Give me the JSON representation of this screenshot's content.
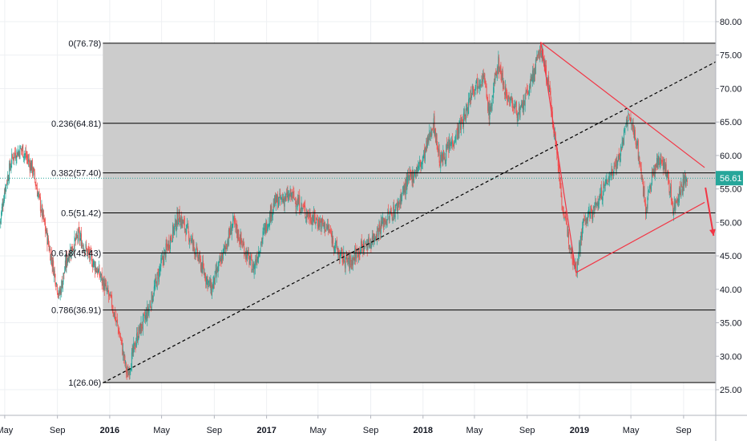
{
  "chart_data": {
    "type": "candlestick",
    "title": "",
    "xlabel": "",
    "ylabel": "",
    "ylim": [
      20.5,
      84.0
    ],
    "y_ticks": [
      25,
      30,
      35,
      40,
      45,
      50,
      55,
      60,
      65,
      70,
      75,
      80
    ],
    "y_tick_labels": [
      "25.00",
      "30.00",
      "35.00",
      "40.00",
      "45.00",
      "50.00",
      "55.00",
      "60.00",
      "65.00",
      "70.00",
      "75.00",
      "80.00"
    ],
    "x_range": [
      "2015-04-20",
      "2019-11-15"
    ],
    "x_ticks": [
      {
        "label": "May",
        "date": "2015-05-01"
      },
      {
        "label": "Sep",
        "date": "2015-09-01"
      },
      {
        "label": "2016",
        "date": "2016-01-01"
      },
      {
        "label": "May",
        "date": "2016-05-01"
      },
      {
        "label": "Sep",
        "date": "2016-09-01"
      },
      {
        "label": "2017",
        "date": "2017-01-01"
      },
      {
        "label": "May",
        "date": "2017-05-01"
      },
      {
        "label": "Sep",
        "date": "2017-09-01"
      },
      {
        "label": "2018",
        "date": "2018-01-01"
      },
      {
        "label": "May",
        "date": "2018-05-01"
      },
      {
        "label": "Sep",
        "date": "2018-09-01"
      },
      {
        "label": "2019",
        "date": "2019-01-01"
      },
      {
        "label": "May",
        "date": "2019-05-01"
      },
      {
        "label": "Sep",
        "date": "2019-09-01"
      }
    ],
    "price_path": [
      [
        "2015-04-20",
        50
      ],
      [
        "2015-05-01",
        55
      ],
      [
        "2015-05-20",
        60
      ],
      [
        "2015-06-10",
        61
      ],
      [
        "2015-07-05",
        58
      ],
      [
        "2015-07-25",
        52
      ],
      [
        "2015-08-20",
        44
      ],
      [
        "2015-09-05",
        39
      ],
      [
        "2015-09-25",
        45
      ],
      [
        "2015-10-20",
        48
      ],
      [
        "2015-11-15",
        45
      ],
      [
        "2015-12-10",
        42
      ],
      [
        "2016-01-05",
        38
      ],
      [
        "2016-01-25",
        33
      ],
      [
        "2016-02-11",
        27
      ],
      [
        "2016-03-05",
        33
      ],
      [
        "2016-04-01",
        37
      ],
      [
        "2016-05-01",
        44
      ],
      [
        "2016-06-10",
        51
      ],
      [
        "2016-07-05",
        48
      ],
      [
        "2016-08-05",
        43
      ],
      [
        "2016-08-25",
        40
      ],
      [
        "2016-09-20",
        45
      ],
      [
        "2016-10-15",
        50
      ],
      [
        "2016-11-10",
        46
      ],
      [
        "2016-12-01",
        43
      ],
      [
        "2016-12-28",
        49
      ],
      [
        "2017-01-20",
        53
      ],
      [
        "2017-03-01",
        54
      ],
      [
        "2017-04-10",
        51
      ],
      [
        "2017-05-05",
        50
      ],
      [
        "2017-05-25",
        49
      ],
      [
        "2017-06-20",
        45
      ],
      [
        "2017-07-15",
        44
      ],
      [
        "2017-08-05",
        46
      ],
      [
        "2017-08-30",
        47
      ],
      [
        "2017-09-30",
        50
      ],
      [
        "2017-10-30",
        52
      ],
      [
        "2017-11-25",
        56
      ],
      [
        "2017-12-30",
        59
      ],
      [
        "2018-01-25",
        65
      ],
      [
        "2018-02-10",
        59
      ],
      [
        "2018-03-10",
        62
      ],
      [
        "2018-04-10",
        66
      ],
      [
        "2018-04-25",
        70
      ],
      [
        "2018-05-22",
        72
      ],
      [
        "2018-06-05",
        66
      ],
      [
        "2018-06-25",
        74
      ],
      [
        "2018-07-15",
        69
      ],
      [
        "2018-08-15",
        66
      ],
      [
        "2018-09-10",
        71
      ],
      [
        "2018-10-03",
        76
      ],
      [
        "2018-10-20",
        71
      ],
      [
        "2018-11-10",
        60
      ],
      [
        "2018-11-25",
        51
      ],
      [
        "2018-12-24",
        43
      ],
      [
        "2019-01-10",
        50
      ],
      [
        "2019-02-05",
        52
      ],
      [
        "2019-03-05",
        56
      ],
      [
        "2019-04-05",
        60
      ],
      [
        "2019-04-25",
        66
      ],
      [
        "2019-05-15",
        62
      ],
      [
        "2019-06-05",
        52
      ],
      [
        "2019-06-20",
        57
      ],
      [
        "2019-07-10",
        60
      ],
      [
        "2019-07-25",
        57
      ],
      [
        "2019-08-08",
        52
      ],
      [
        "2019-08-25",
        55
      ],
      [
        "2019-09-10",
        56.61
      ]
    ],
    "fib_levels": [
      {
        "label": "0(76.78)",
        "value": 76.78
      },
      {
        "label": "0.236(64.81)",
        "value": 64.81
      },
      {
        "label": "0.382(57.40)",
        "value": 57.4
      },
      {
        "label": "0.5(51.42)",
        "value": 51.42
      },
      {
        "label": "0.618(45.43)",
        "value": 45.43
      },
      {
        "label": "0.786(36.91)",
        "value": 36.91
      },
      {
        "label": "1(26.06)",
        "value": 26.06
      }
    ],
    "fib_range": {
      "start": "2015-12-16",
      "end": "2019-11-15"
    },
    "current_price": {
      "value": 56.61,
      "label": "56.61"
    },
    "trendlines": [
      {
        "style": "dashed",
        "color": "#000000",
        "points": [
          [
            "2015-12-16",
            26.0
          ],
          [
            "2019-11-15",
            74.0
          ]
        ]
      },
      {
        "style": "solid",
        "color": "#f23645",
        "points": [
          [
            "2018-10-03",
            76.9
          ],
          [
            "2019-10-20",
            58.2
          ]
        ]
      },
      {
        "style": "solid",
        "color": "#f23645",
        "points": [
          [
            "2018-12-24",
            42.5
          ],
          [
            "2019-10-20",
            53.0
          ]
        ]
      },
      {
        "style": "solid",
        "color": "#f23645",
        "points": [
          [
            "2018-10-03",
            76.9
          ],
          [
            "2018-12-24",
            42.5
          ]
        ]
      },
      {
        "style": "arrow",
        "color": "#f23645",
        "points": [
          [
            "2019-10-22",
            55.2
          ],
          [
            "2019-11-10",
            48.0
          ]
        ]
      }
    ],
    "colors": {
      "up": "#26a69a",
      "down": "#ef5350",
      "fib_fill": "#cccccc",
      "fib_line": "#000000",
      "annotation": "#f23645",
      "price_line": "#26a69a",
      "price_badge": "#26a69a"
    },
    "grid": true,
    "legend": "none"
  }
}
